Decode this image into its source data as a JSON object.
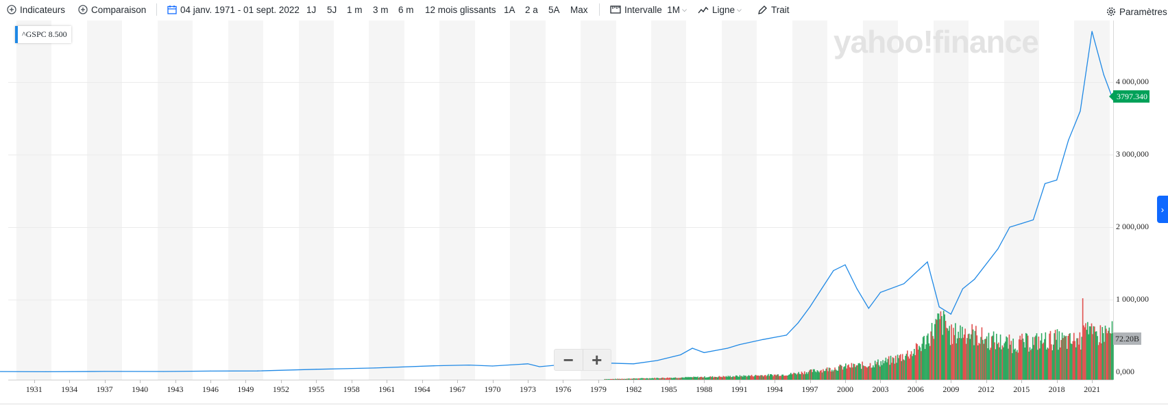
{
  "toolbar": {
    "indicators": "Indicateurs",
    "comparison": "Comparaison",
    "date_range": "04 janv. 1971 - 01 sept. 2022",
    "ranges": [
      "1J",
      "5J",
      "1 m",
      "3 m",
      "6 m",
      "12 mois glissants",
      "1A",
      "2 a",
      "5A",
      "Max"
    ],
    "interval_label": "Intervalle",
    "interval_value": "1M",
    "line_label": "Ligne",
    "draw_label": "Trait",
    "settings_label": "Paramètres"
  },
  "legend": {
    "symbol": "^GSPC",
    "value": "8.500"
  },
  "watermark": "yahoo!finance",
  "price_tag": "3797.340",
  "volume_tag": "72.20B",
  "zoom": {
    "minus": "−",
    "plus": "+"
  },
  "colors": {
    "line": "#1e88e5",
    "up_volume": "#2ea85f",
    "down_volume": "#e0514f",
    "price_tag": "#00a159"
  },
  "chart_data": {
    "type": "line",
    "series": [
      {
        "name": "^GSPC",
        "x": [
          1928,
          1932,
          1937,
          1942,
          1946,
          1950,
          1955,
          1960,
          1965,
          1968,
          1970,
          1973,
          1974,
          1976,
          1979,
          1980,
          1982,
          1984,
          1986,
          1987,
          1988,
          1990,
          1991,
          1993,
          1995,
          1996,
          1997,
          1998,
          1999,
          2000,
          2001,
          2002,
          2003,
          2005,
          2007,
          2008,
          2009,
          2010,
          2011,
          2013,
          2014,
          2015,
          2016,
          2017,
          2018,
          2019,
          2020,
          2021,
          2022,
          2022.7
        ],
        "values": [
          8.5,
          6,
          10,
          9,
          15,
          17,
          40,
          58,
          88,
          98,
          85,
          115,
          75,
          105,
          100,
          125,
          115,
          160,
          240,
          330,
          270,
          330,
          380,
          450,
          510,
          680,
          900,
          1150,
          1400,
          1480,
          1150,
          880,
          1100,
          1220,
          1520,
          900,
          800,
          1150,
          1280,
          1700,
          2000,
          2050,
          2100,
          2600,
          2650,
          3200,
          3600,
          4700,
          4100,
          3797.34
        ]
      }
    ],
    "volume": {
      "x": [
        1980,
        1985,
        1990,
        1995,
        1998,
        2000,
        2002,
        2004,
        2006,
        2007,
        2008,
        2008.5,
        2009,
        2010,
        2012,
        2014,
        2016,
        2018,
        2019,
        2020,
        2020.2,
        2021,
        2022
      ],
      "values": [
        1,
        3,
        5,
        8,
        15,
        20,
        23,
        30,
        45,
        65,
        90,
        85,
        68,
        75,
        62,
        55,
        58,
        62,
        58,
        62,
        108,
        65,
        72.2
      ]
    },
    "y_ticks": [
      "0,000",
      "1 000,000",
      "2 000,000",
      "3 000,000",
      "4 000,000"
    ],
    "ylim": [
      0,
      5000
    ],
    "x_ticks": [
      "1931",
      "1934",
      "1937",
      "1940",
      "1943",
      "1946",
      "1949",
      "1952",
      "1955",
      "1958",
      "1961",
      "1964",
      "1967",
      "1970",
      "1973",
      "1976",
      "1979",
      "1982",
      "1985",
      "1988",
      "1991",
      "1994",
      "1997",
      "2000",
      "2003",
      "2006",
      "2009",
      "2012",
      "2015",
      "2018",
      "2021"
    ],
    "xlim": [
      1928.8,
      2022.8
    ],
    "grid": true
  }
}
